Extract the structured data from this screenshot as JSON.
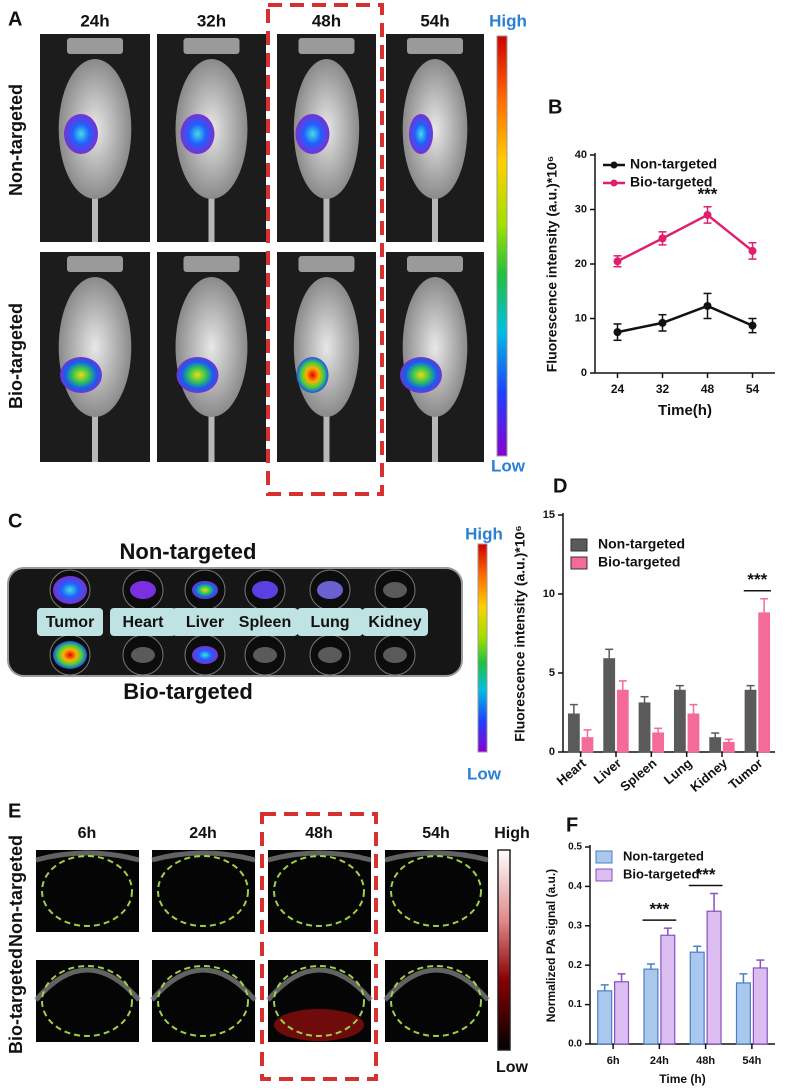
{
  "panels": {
    "A": {
      "label": "A",
      "columns": [
        "24h",
        "32h",
        "48h",
        "54h"
      ],
      "rows": [
        "Non-targeted",
        "Bio-targeted"
      ],
      "scale": [
        "High",
        "Low"
      ]
    },
    "B": {
      "label": "B"
    },
    "C": {
      "label": "C",
      "titles": [
        "Non-targeted",
        "Bio-targeted"
      ],
      "organs": [
        "Tumor",
        "Heart",
        "Liver",
        "Spleen",
        "Lung",
        "Kidney"
      ],
      "scale": [
        "High",
        "Low"
      ]
    },
    "D": {
      "label": "D"
    },
    "E": {
      "label": "E",
      "columns": [
        "6h",
        "24h",
        "48h",
        "54h"
      ],
      "rows": [
        "Non-targeted",
        "Bio-targeted"
      ],
      "scale": [
        "High",
        "Low"
      ]
    },
    "F": {
      "label": "F"
    }
  },
  "chart_data": [
    {
      "type": "line",
      "xlabel": "Time(h)",
      "ylabel": "Fluorescence intensity (a.u.)*10⁶",
      "categories": [
        "24",
        "32",
        "48",
        "54"
      ],
      "series": [
        {
          "name": "Non-targeted",
          "color": "#111111",
          "values": [
            7.5,
            9.2,
            12.3,
            8.7
          ],
          "errors": [
            1.5,
            1.5,
            2.3,
            1.3
          ]
        },
        {
          "name": "Bio-targeted",
          "color": "#e0206e",
          "values": [
            20.5,
            24.7,
            29,
            22.4
          ],
          "errors": [
            1,
            1.2,
            1.5,
            1.5
          ]
        }
      ],
      "ylim": [
        0,
        40
      ],
      "yticks": [
        0,
        10,
        20,
        30,
        40
      ],
      "legend": "upper left",
      "annotations": [
        {
          "text": "***",
          "category": "48"
        }
      ]
    },
    {
      "type": "bar",
      "ylabel": "Fluorescence intensity (a.u.)*10⁶",
      "categories": [
        "Heart",
        "Liver",
        "Spleen",
        "Lung",
        "Kidney",
        "Tumor"
      ],
      "series": [
        {
          "name": "Non-targeted",
          "color": "#5a5a5a",
          "values": [
            2.4,
            5.9,
            3.1,
            3.9,
            0.9,
            3.9
          ],
          "errors": [
            0.6,
            0.6,
            0.4,
            0.3,
            0.3,
            0.3
          ]
        },
        {
          "name": "Bio-targeted",
          "color": "#f46a98",
          "values": [
            0.9,
            3.9,
            1.2,
            2.4,
            0.6,
            8.8
          ],
          "errors": [
            0.5,
            0.6,
            0.3,
            0.6,
            0.2,
            0.9
          ]
        }
      ],
      "ylim": [
        0,
        15
      ],
      "yticks": [
        0,
        5,
        10,
        15
      ],
      "legend": "upper left",
      "annotations": [
        {
          "text": "***",
          "category": "Tumor"
        }
      ]
    },
    {
      "type": "bar",
      "xlabel": "Time (h)",
      "ylabel": "Normalized PA signal (a.u.)",
      "categories": [
        "6h",
        "24h",
        "48h",
        "54h"
      ],
      "series": [
        {
          "name": "Non-targeted",
          "color": "#aac8ee",
          "values": [
            0.135,
            0.19,
            0.233,
            0.155
          ],
          "errors": [
            0.015,
            0.013,
            0.015,
            0.023
          ]
        },
        {
          "name": "Bio-targeted",
          "color": "#dcbdf2",
          "values": [
            0.158,
            0.276,
            0.337,
            0.193
          ],
          "errors": [
            0.02,
            0.018,
            0.045,
            0.02
          ]
        }
      ],
      "ylim": [
        0,
        0.5
      ],
      "yticks": [
        {
          "value": 0,
          "label": "0.0"
        },
        0.1,
        0.2,
        0.3,
        0.4,
        0.5
      ],
      "legend": "upper left",
      "annotations": [
        {
          "text": "***",
          "category": "24h"
        },
        {
          "text": "***",
          "category": "48h"
        }
      ]
    }
  ]
}
